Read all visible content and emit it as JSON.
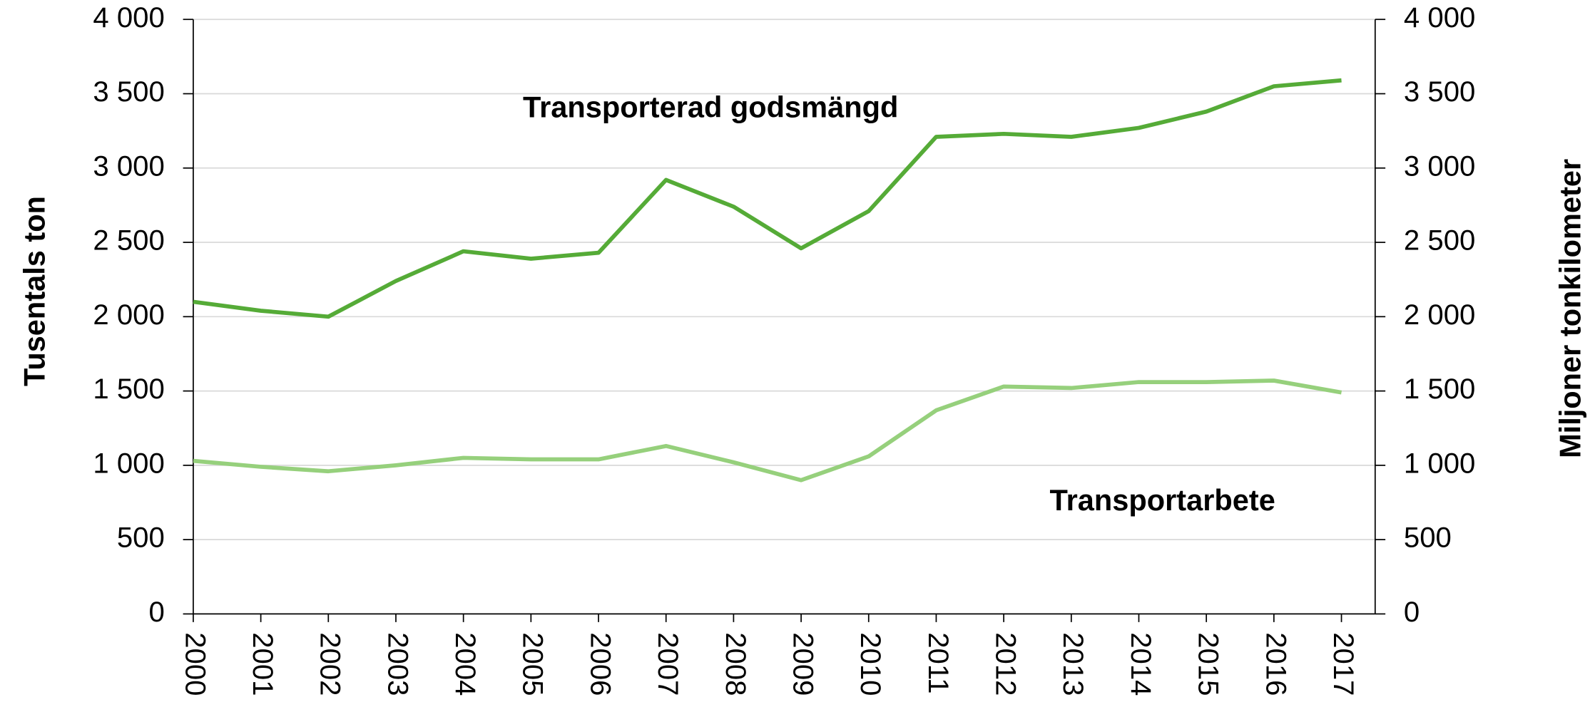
{
  "chart_data": {
    "type": "line",
    "categories": [
      "2000",
      "2001",
      "2002",
      "2003",
      "2004",
      "2005",
      "2006",
      "2007",
      "2008",
      "2009",
      "2010",
      "2011",
      "2012",
      "2013",
      "2014",
      "2015",
      "2016",
      "2017"
    ],
    "series": [
      {
        "name": "Transporterad godsmängd",
        "color": "#55ab37",
        "values": [
          2100,
          2040,
          2000,
          2240,
          2440,
          2390,
          2430,
          2920,
          2740,
          2460,
          2710,
          3210,
          3230,
          3210,
          3270,
          3380,
          3550,
          3590
        ]
      },
      {
        "name": "Transportarbete",
        "color": "#96d07c",
        "axis": "y2",
        "values": [
          1030,
          990,
          960,
          1000,
          1050,
          1040,
          1040,
          1130,
          1020,
          900,
          1060,
          1370,
          1530,
          1520,
          1560,
          1560,
          1570,
          1490
        ]
      }
    ],
    "y_label": "Tusentals ton",
    "y2_label": "Miljoner tonkilometer",
    "ylim": [
      0,
      4000
    ],
    "yticks": [
      0,
      500,
      {
        "value": 1000,
        "label": "1 000"
      },
      {
        "value": 1500,
        "label": "1 500"
      },
      {
        "value": 2000,
        "label": "2 000"
      },
      {
        "value": 2500,
        "label": "2 500"
      },
      {
        "value": 3000,
        "label": "3 000"
      },
      {
        "value": 3500,
        "label": "3 500"
      },
      {
        "value": 4000,
        "label": "4 000"
      }
    ],
    "y2lim": [
      0,
      4000
    ],
    "y2ticks": [
      0,
      500,
      {
        "value": 1000,
        "label": "1 000"
      },
      {
        "value": 1500,
        "label": "1 500"
      },
      {
        "value": 2000,
        "label": "2 000"
      },
      {
        "value": 2500,
        "label": "2 500"
      },
      {
        "value": 3000,
        "label": "3 000"
      },
      {
        "value": 3500,
        "label": "3 500"
      },
      {
        "value": 4000,
        "label": "4 000"
      }
    ],
    "grid": true
  }
}
